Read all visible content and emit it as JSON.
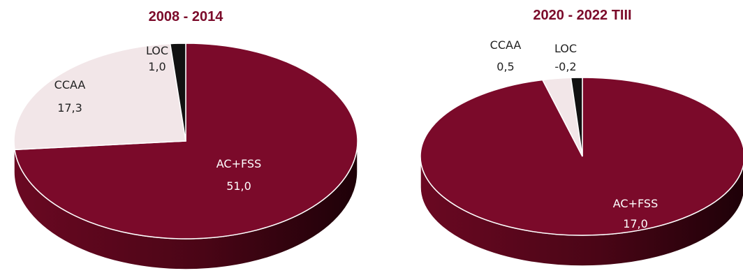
{
  "chart_data": [
    {
      "type": "pie",
      "title": "2008 - 2014",
      "slices": [
        {
          "label": "AC+FSS",
          "value": 51.0,
          "display": "51,0",
          "color": "#7B0A2A"
        },
        {
          "label": "CCAA",
          "value": 17.3,
          "display": "17,3",
          "color": "#F2E6E8"
        },
        {
          "label": "LOC",
          "value": 1.0,
          "display": "1,0",
          "color": "#111111"
        }
      ]
    },
    {
      "type": "pie",
      "title": "2020 - 2022 TIII",
      "slices": [
        {
          "label": "AC+FSS",
          "value": 17.0,
          "display": "17,0",
          "color": "#7B0A2A"
        },
        {
          "label": "CCAA",
          "value": 0.5,
          "display": "0,5",
          "color": "#F2E6E8"
        },
        {
          "label": "LOC",
          "value": -0.2,
          "display": "-0,2",
          "color": "#111111"
        }
      ]
    }
  ]
}
